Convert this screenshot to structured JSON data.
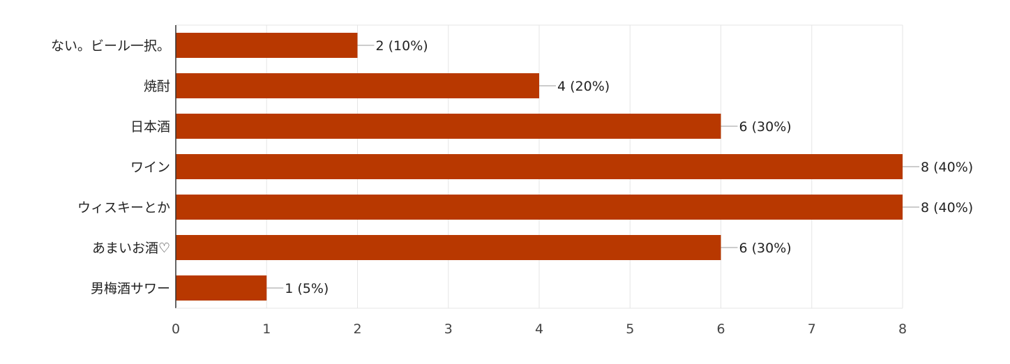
{
  "chart_data": {
    "type": "bar",
    "orientation": "horizontal",
    "categories": [
      "ない。ビール一択。",
      "焼酎",
      "日本酒",
      "ワイン",
      "ウィスキーとか",
      "あまいお酒♡",
      "男梅酒サワー"
    ],
    "values": [
      2,
      4,
      6,
      8,
      8,
      6,
      1
    ],
    "value_labels": [
      "2 (10%)",
      "4 (20%)",
      "6 (30%)",
      "8 (40%)",
      "8 (40%)",
      "6 (30%)",
      "1 (5%)"
    ],
    "xticks": [
      "0",
      "1",
      "2",
      "3",
      "4",
      "5",
      "6",
      "7",
      "8"
    ],
    "xlim": [
      0,
      8
    ],
    "grid": true,
    "legend": "none",
    "bar_color": "#b83800",
    "gridline_color": "#e5e5e5",
    "axis_color": "#333333",
    "text_color": "#222222"
  }
}
